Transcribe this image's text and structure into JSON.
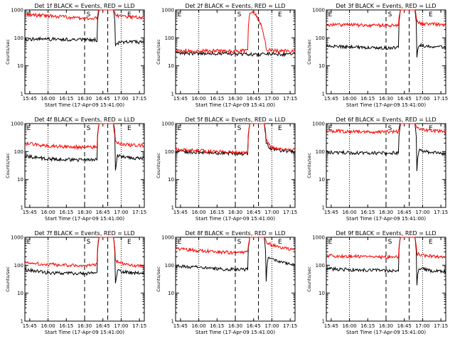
{
  "colors": {
    "events": "#000000",
    "lld": "#ff0000",
    "axis": "#000000",
    "background": "#ffffff"
  },
  "chart_data": [
    {
      "type": "line",
      "title": "Det 1f BLACK = Events, RED = LLD",
      "xlabel": "Start Time (17-Apr-09 15:41:00)",
      "ylabel": "Counts/sec",
      "yscale": "log",
      "ylim": [
        1,
        1000
      ],
      "xticks": [
        "15:45",
        "16:00",
        "16:15",
        "16:30",
        "16:45",
        "17:00",
        "17:15"
      ],
      "yticks": [
        "1",
        "10",
        "100",
        "1000"
      ],
      "markers": [
        "E",
        "S",
        "E"
      ],
      "series": [
        {
          "color": "#000000",
          "points": [
            [
              0,
              90
            ],
            [
              10,
              92
            ],
            [
              20,
              88
            ],
            [
              30,
              86
            ],
            [
              35,
              85
            ],
            [
              36,
              1000
            ],
            [
              43,
              1000
            ],
            [
              44,
              60
            ],
            [
              46,
              70
            ],
            [
              50,
              72
            ],
            [
              58,
              70
            ]
          ]
        },
        {
          "color": "#ff0000",
          "points": [
            [
              0,
              700
            ],
            [
              15,
              600
            ],
            [
              25,
              520
            ],
            [
              35,
              500
            ],
            [
              36,
              1000
            ],
            [
              43,
              1000
            ],
            [
              44,
              700
            ],
            [
              46,
              600
            ],
            [
              52,
              560
            ],
            [
              58,
              550
            ]
          ]
        }
      ]
    },
    {
      "type": "line",
      "title": "Det 2f BLACK = Events, RED = LLD",
      "xlabel": "Start Time (17-Apr-09 15:41:00)",
      "ylabel": "Counts/sec",
      "yscale": "log",
      "ylim": [
        1,
        1000
      ],
      "xticks": [
        "15:45",
        "16:00",
        "16:15",
        "16:30",
        "16:45",
        "17:00",
        "17:15"
      ],
      "yticks": [
        "1",
        "10",
        "100",
        "1000"
      ],
      "markers": [
        "E",
        "S",
        "E"
      ],
      "series": [
        {
          "color": "#000000",
          "points": [
            [
              0,
              30
            ],
            [
              10,
              28
            ],
            [
              20,
              28
            ],
            [
              30,
              27
            ],
            [
              35,
              27
            ],
            [
              40,
              25
            ],
            [
              44,
              28
            ],
            [
              48,
              27
            ],
            [
              52,
              26
            ],
            [
              58,
              26
            ]
          ]
        },
        {
          "color": "#ff0000",
          "points": [
            [
              0,
              35
            ],
            [
              10,
              34
            ],
            [
              20,
              35
            ],
            [
              30,
              34
            ],
            [
              35,
              35
            ],
            [
              36,
              700
            ],
            [
              38,
              800
            ],
            [
              39,
              700
            ],
            [
              40,
              500
            ],
            [
              41,
              350
            ],
            [
              42,
              200
            ],
            [
              43,
              100
            ],
            [
              44,
              40
            ],
            [
              48,
              35
            ],
            [
              52,
              34
            ],
            [
              58,
              34
            ]
          ]
        }
      ]
    },
    {
      "type": "line",
      "title": "Det 3f BLACK = Events, RED = LLD",
      "xlabel": "Start Time (17-Apr-09 15:41:00)",
      "ylabel": "Counts/sec",
      "yscale": "log",
      "ylim": [
        1,
        1000
      ],
      "xticks": [
        "15:45",
        "16:00",
        "16:15",
        "16:30",
        "16:45",
        "17:00",
        "17:15"
      ],
      "yticks": [
        "1",
        "10",
        "100",
        "1000"
      ],
      "markers": [
        "E",
        "S",
        "E"
      ],
      "series": [
        {
          "color": "#000000",
          "points": [
            [
              0,
              50
            ],
            [
              10,
              48
            ],
            [
              20,
              45
            ],
            [
              30,
              44
            ],
            [
              35,
              45
            ],
            [
              36,
              1000
            ],
            [
              43,
              1000
            ],
            [
              44,
              20
            ],
            [
              45,
              55
            ],
            [
              50,
              50
            ],
            [
              58,
              48
            ]
          ]
        },
        {
          "color": "#ff0000",
          "points": [
            [
              0,
              300
            ],
            [
              15,
              290
            ],
            [
              25,
              280
            ],
            [
              35,
              290
            ],
            [
              36,
              1000
            ],
            [
              43,
              1000
            ],
            [
              44,
              400
            ],
            [
              46,
              330
            ],
            [
              52,
              310
            ],
            [
              58,
              300
            ]
          ]
        }
      ]
    },
    {
      "type": "line",
      "title": "Det 4f BLACK = Events, RED = LLD",
      "xlabel": "Start Time (17-Apr-09 15:41:00)",
      "ylabel": "Counts/sec",
      "yscale": "log",
      "ylim": [
        1,
        1000
      ],
      "xticks": [
        "15:45",
        "16:00",
        "16:15",
        "16:30",
        "16:45",
        "17:00",
        "17:15"
      ],
      "yticks": [
        "1",
        "10",
        "100",
        "1000"
      ],
      "markers": [
        "E",
        "S",
        "E"
      ],
      "series": [
        {
          "color": "#000000",
          "points": [
            [
              0,
              70
            ],
            [
              10,
              55
            ],
            [
              20,
              52
            ],
            [
              30,
              50
            ],
            [
              35,
              55
            ],
            [
              36,
              1000
            ],
            [
              43,
              1000
            ],
            [
              44,
              20
            ],
            [
              45,
              70
            ],
            [
              50,
              60
            ],
            [
              58,
              58
            ]
          ]
        },
        {
          "color": "#ff0000",
          "points": [
            [
              0,
              200
            ],
            [
              10,
              160
            ],
            [
              20,
              150
            ],
            [
              30,
              145
            ],
            [
              35,
              150
            ],
            [
              36,
              1000
            ],
            [
              43,
              1000
            ],
            [
              44,
              250
            ],
            [
              46,
              190
            ],
            [
              52,
              170
            ],
            [
              58,
              165
            ]
          ]
        }
      ]
    },
    {
      "type": "line",
      "title": "Det 5f BLACK = Events, RED = LLD",
      "xlabel": "Start Time (17-Apr-09 15:41:00)",
      "ylabel": "Counts/sec",
      "yscale": "log",
      "ylim": [
        1,
        1000
      ],
      "xticks": [
        "15:45",
        "16:00",
        "16:15",
        "16:30",
        "16:45",
        "17:00",
        "17:15"
      ],
      "yticks": [
        "1",
        "10",
        "100",
        "1000"
      ],
      "markers": [
        "E",
        "S",
        "E"
      ],
      "series": [
        {
          "color": "#000000",
          "points": [
            [
              0,
              100
            ],
            [
              10,
              95
            ],
            [
              20,
              90
            ],
            [
              30,
              85
            ],
            [
              35,
              85
            ],
            [
              36,
              1000
            ],
            [
              43,
              1000
            ],
            [
              44,
              200
            ],
            [
              46,
              130
            ],
            [
              50,
              110
            ],
            [
              58,
              100
            ]
          ]
        },
        {
          "color": "#ff0000",
          "points": [
            [
              0,
              120
            ],
            [
              10,
              110
            ],
            [
              20,
              100
            ],
            [
              30,
              95
            ],
            [
              35,
              95
            ],
            [
              36,
              1000
            ],
            [
              43,
              1000
            ],
            [
              44,
              250
            ],
            [
              46,
              150
            ],
            [
              50,
              120
            ],
            [
              58,
              115
            ]
          ]
        }
      ]
    },
    {
      "type": "line",
      "title": "Det 6f BLACK = Events, RED = LLD",
      "xlabel": "Start Time (17-Apr-09 15:41:00)",
      "ylabel": "Counts/sec",
      "yscale": "log",
      "ylim": [
        1,
        1000
      ],
      "xticks": [
        "15:45",
        "16:00",
        "16:15",
        "16:30",
        "16:45",
        "17:00",
        "17:15"
      ],
      "yticks": [
        "1",
        "10",
        "100",
        "1000"
      ],
      "markers": [
        "E",
        "S",
        "E"
      ],
      "series": [
        {
          "color": "#000000",
          "points": [
            [
              0,
              95
            ],
            [
              10,
              92
            ],
            [
              20,
              90
            ],
            [
              30,
              88
            ],
            [
              35,
              90
            ],
            [
              36,
              1000
            ],
            [
              43,
              1000
            ],
            [
              44,
              20
            ],
            [
              45,
              110
            ],
            [
              50,
              95
            ],
            [
              58,
              85
            ]
          ]
        },
        {
          "color": "#ff0000",
          "points": [
            [
              0,
              550
            ],
            [
              15,
              520
            ],
            [
              25,
              500
            ],
            [
              35,
              520
            ],
            [
              36,
              1000
            ],
            [
              43,
              1000
            ],
            [
              44,
              700
            ],
            [
              46,
              600
            ],
            [
              52,
              550
            ],
            [
              58,
              520
            ]
          ]
        }
      ]
    },
    {
      "type": "line",
      "title": "Det 7f BLACK = Events, RED = LLD",
      "xlabel": "Start Time (17-Apr-09 15:41:00)",
      "ylabel": "Counts/sec",
      "yscale": "log",
      "ylim": [
        1,
        1000
      ],
      "xticks": [
        "15:45",
        "16:00",
        "16:15",
        "16:30",
        "16:45",
        "17:00",
        "17:15"
      ],
      "yticks": [
        "1",
        "10",
        "100",
        "1000"
      ],
      "markers": [
        "E",
        "S",
        "E"
      ],
      "series": [
        {
          "color": "#000000",
          "points": [
            [
              0,
              70
            ],
            [
              10,
              55
            ],
            [
              20,
              52
            ],
            [
              30,
              50
            ],
            [
              35,
              55
            ],
            [
              36,
              1000
            ],
            [
              43,
              1000
            ],
            [
              44,
              20
            ],
            [
              45,
              65
            ],
            [
              50,
              55
            ],
            [
              58,
              50
            ]
          ]
        },
        {
          "color": "#ff0000",
          "points": [
            [
              0,
              120
            ],
            [
              10,
              110
            ],
            [
              20,
              100
            ],
            [
              30,
              95
            ],
            [
              35,
              110
            ],
            [
              36,
              1000
            ],
            [
              43,
              1000
            ],
            [
              44,
              150
            ],
            [
              46,
              120
            ],
            [
              52,
              100
            ],
            [
              58,
              95
            ]
          ]
        }
      ]
    },
    {
      "type": "line",
      "title": "Det 8f BLACK = Events, RED = LLD",
      "xlabel": "Start Time (17-Apr-09 15:41:00)",
      "ylabel": "Counts/sec",
      "yscale": "log",
      "ylim": [
        1,
        1000
      ],
      "xticks": [
        "15:45",
        "16:00",
        "16:15",
        "16:30",
        "16:45",
        "17:00",
        "17:15"
      ],
      "yticks": [
        "1",
        "10",
        "100",
        "1000"
      ],
      "markers": [
        "E",
        "S",
        "E"
      ],
      "series": [
        {
          "color": "#000000",
          "points": [
            [
              0,
              95
            ],
            [
              10,
              85
            ],
            [
              20,
              75
            ],
            [
              30,
              70
            ],
            [
              35,
              70
            ],
            [
              36,
              1000
            ],
            [
              43,
              1000
            ],
            [
              44,
              25
            ],
            [
              45,
              200
            ],
            [
              48,
              150
            ],
            [
              52,
              120
            ],
            [
              58,
              100
            ]
          ]
        },
        {
          "color": "#ff0000",
          "points": [
            [
              0,
              400
            ],
            [
              10,
              340
            ],
            [
              20,
              300
            ],
            [
              30,
              280
            ],
            [
              35,
              290
            ],
            [
              36,
              1000
            ],
            [
              43,
              1000
            ],
            [
              44,
              700
            ],
            [
              46,
              550
            ],
            [
              52,
              420
            ],
            [
              58,
              350
            ]
          ]
        }
      ]
    },
    {
      "type": "line",
      "title": "Det 9f BLACK = Events, RED = LLD",
      "xlabel": "Start Time (17-Apr-09 15:41:00)",
      "ylabel": "Counts/sec",
      "yscale": "log",
      "ylim": [
        1,
        1000
      ],
      "xticks": [
        "15:45",
        "16:00",
        "16:15",
        "16:30",
        "16:45",
        "17:00",
        "17:15"
      ],
      "yticks": [
        "1",
        "10",
        "100",
        "1000"
      ],
      "markers": [
        "E",
        "S",
        "E"
      ],
      "series": [
        {
          "color": "#000000",
          "points": [
            [
              0,
              75
            ],
            [
              10,
              70
            ],
            [
              20,
              68
            ],
            [
              30,
              65
            ],
            [
              35,
              68
            ],
            [
              36,
              1000
            ],
            [
              43,
              1000
            ],
            [
              44,
              20
            ],
            [
              45,
              80
            ],
            [
              50,
              65
            ],
            [
              58,
              60
            ]
          ]
        },
        {
          "color": "#ff0000",
          "points": [
            [
              0,
              220
            ],
            [
              10,
              210
            ],
            [
              20,
              200
            ],
            [
              30,
              195
            ],
            [
              35,
              200
            ],
            [
              36,
              1000
            ],
            [
              43,
              1000
            ],
            [
              44,
              260
            ],
            [
              46,
              230
            ],
            [
              52,
              210
            ],
            [
              58,
              200
            ]
          ]
        }
      ]
    }
  ]
}
